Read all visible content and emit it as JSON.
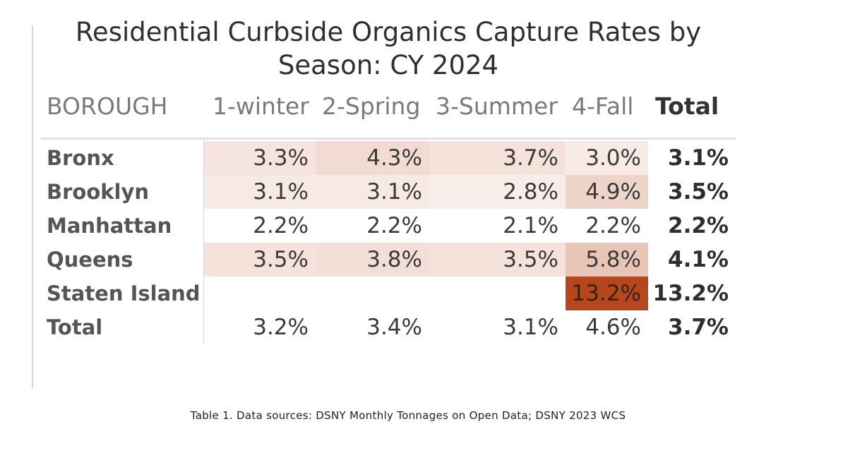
{
  "title_line1": "Residential Curbside Organics Capture Rates by",
  "title_line2": "Season: CY 2024",
  "columns": [
    "BOROUGH",
    "1-winter",
    "2-Spring",
    "3-Summer",
    "4-Fall",
    "Total"
  ],
  "rows": [
    {
      "label": "Bronx",
      "values": [
        "3.3%",
        "4.3%",
        "3.7%",
        "3.0%",
        "3.1%"
      ],
      "intensity": [
        0.35,
        0.62,
        0.42,
        0.18,
        0
      ]
    },
    {
      "label": "Brooklyn",
      "values": [
        "3.1%",
        "3.1%",
        "2.8%",
        "4.9%",
        "3.5%"
      ],
      "intensity": [
        0.25,
        0.25,
        0.12,
        0.8,
        0
      ]
    },
    {
      "label": "Manhattan",
      "values": [
        "2.2%",
        "2.2%",
        "2.1%",
        "2.2%",
        "2.2%"
      ],
      "intensity": [
        0,
        0,
        0,
        0,
        0
      ]
    },
    {
      "label": "Queens",
      "values": [
        "3.5%",
        "3.8%",
        "3.5%",
        "5.8%",
        "4.1%"
      ],
      "intensity": [
        0.42,
        0.5,
        0.42,
        1.2,
        0
      ]
    },
    {
      "label": "Staten Island",
      "values": [
        "",
        "",
        "",
        "13.2%",
        "13.2%"
      ],
      "intensity": [
        0,
        0,
        0,
        5,
        0
      ]
    },
    {
      "label": "Total",
      "values": [
        "3.2%",
        "3.4%",
        "3.1%",
        "4.6%",
        "3.7%"
      ],
      "intensity": [
        0,
        0,
        0,
        0,
        0
      ]
    }
  ],
  "colors": {
    "heat_low": "#fbf2ee",
    "heat_high": "#b5471f"
  },
  "caption": "Table 1. Data sources: DSNY Monthly Tonnages on Open Data; DSNY 2023 WCS"
}
